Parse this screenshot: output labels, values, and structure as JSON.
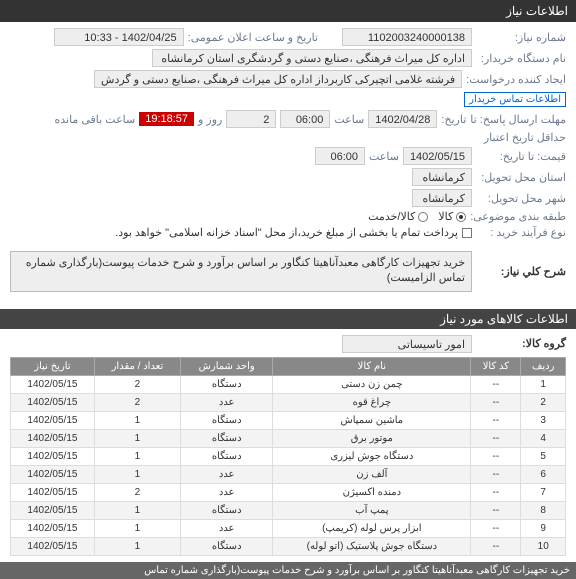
{
  "titlebar": "اطلاعات نیاز",
  "form": {
    "niaz_number_label": "شماره نیاز:",
    "niaz_number": "1102003240000138",
    "announce_label": "تاریخ و ساعت اعلان عمومی:",
    "announce_value": "1402/04/25 - 10:33",
    "buyer_label": "نام دستگاه خریدار:",
    "buyer_value": "اداره کل میراث فرهنگی ،صنایع دستی و گردشگری استان کرمانشاه",
    "creator_label": "ایجاد کننده درخواست:",
    "creator_value": "فرشته غلامی اتچیرکی کاربرداز اداره کل میراث فرهنگی ،صنایع دستی و گردش",
    "contact_link": "اطلاعات تماس خریدار",
    "send_allow_label": "مهلت ارسال پاسخ: تا",
    "send_date": "1402/04/28",
    "time_label": "ساعت",
    "send_time": "06:00",
    "days_left": "2",
    "remain_label": "روز و",
    "countdown": "19:18:57",
    "remain_suffix": "ساعت باقی مانده",
    "until_label": "تاریخ:",
    "valid_label": "حداقل تاریخ اعتبار",
    "valid_pricelabel": "قیمت: تا تاریخ:",
    "valid_date": "1402/05/15",
    "valid_time": "06:00",
    "province_label": "استان محل تحویل:",
    "province": "کرمانشاه",
    "city_label": "شهر محل تحویل:",
    "city": "کرمانشاه",
    "category_label": "طبقه بندی موضوعی:",
    "cat_kala": "کالا",
    "cat_service": "کالا/خدمت",
    "purchase_label": "نوع فرآیند خرید :",
    "purchase_note": "پرداخت تمام یا بخشی از مبلغ خرید،از محل \"اسناد خزانه اسلامی\" خواهد بود."
  },
  "desc": {
    "label": "شرح کلي نیاز:",
    "text": "خرید تجهیزات کارگاهی معبدآناهیتا کنگاور بر اساس برآورد و شرح خدمات پیوست(بارگذاری شماره تماس الزامیست)"
  },
  "goods_header": "اطلاعات کالاهای مورد نیاز",
  "group": {
    "label": "گروه کالا:",
    "value": "امور تاسیساتی"
  },
  "table": {
    "cols": [
      "ردیف",
      "کد کالا",
      "نام کالا",
      "واحد شمارش",
      "تعداد / مقدار",
      "تاریخ نیاز"
    ],
    "rows": [
      [
        "1",
        "--",
        "چمن زن دستی",
        "دستگاه",
        "2",
        "1402/05/15"
      ],
      [
        "2",
        "--",
        "چراغ قوه",
        "عدد",
        "2",
        "1402/05/15"
      ],
      [
        "3",
        "--",
        "ماشین سمپاش",
        "دستگاه",
        "1",
        "1402/05/15"
      ],
      [
        "4",
        "--",
        "موتور برق",
        "دستگاه",
        "1",
        "1402/05/15"
      ],
      [
        "5",
        "--",
        "دستگاه جوش لیزری",
        "دستگاه",
        "1",
        "1402/05/15"
      ],
      [
        "6",
        "--",
        "آلف زن",
        "عدد",
        "1",
        "1402/05/15"
      ],
      [
        "7",
        "--",
        "دمنده اکسیژن",
        "عدد",
        "2",
        "1402/05/15"
      ],
      [
        "8",
        "--",
        "پمپ آب",
        "دستگاه",
        "1",
        "1402/05/15"
      ],
      [
        "9",
        "--",
        "ابزار پرس لوله (کریمپ)",
        "عدد",
        "1",
        "1402/05/15"
      ],
      [
        "10",
        "--",
        "دستگاه جوش پلاستیک (اتو لوله)",
        "دستگاه",
        "1",
        "1402/05/15"
      ]
    ]
  },
  "footer": "خرید تجهیزات کارگاهی معبدآناهیتا کنگاور بر اساس برآورد و شرح خدمات پیوست(بارگذاری شماره تماس"
}
